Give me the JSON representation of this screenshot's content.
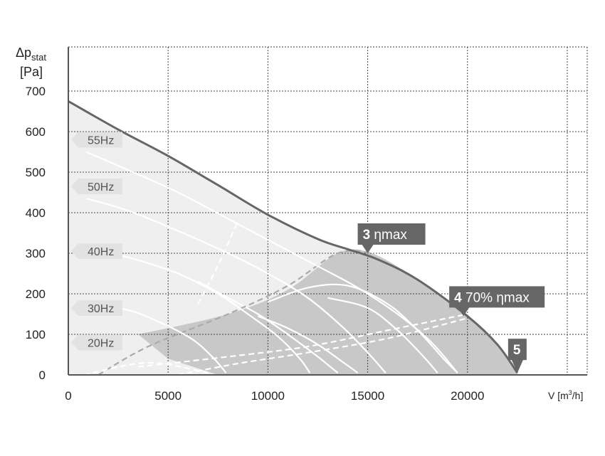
{
  "chart_data": {
    "type": "line",
    "ylabel_symbol": "Δp",
    "ylabel_sub": "stat",
    "ylabel_unit": "[Pa]",
    "xlabel_prefix": "V [m",
    "xlabel_sup": "3",
    "xlabel_suffix": "/h]",
    "xlim": [
      0,
      26000
    ],
    "ylim": [
      0,
      700
    ],
    "x_ticks": [
      0,
      5000,
      10000,
      15000,
      20000
    ],
    "y_ticks": [
      0,
      100,
      200,
      300,
      400,
      500,
      600,
      700
    ],
    "grid": true,
    "series": [
      {
        "name": "55Hz",
        "style": "max",
        "points": [
          [
            0,
            675
          ],
          [
            2500,
            605
          ],
          [
            5000,
            540
          ],
          [
            7500,
            468
          ],
          [
            10000,
            395
          ],
          [
            12500,
            335
          ],
          [
            14000,
            310
          ],
          [
            15500,
            285
          ],
          [
            17500,
            235
          ],
          [
            20000,
            145
          ],
          [
            21500,
            75
          ],
          [
            22500,
            5
          ]
        ]
      },
      {
        "name": "50Hz",
        "style": "curve",
        "points": [
          [
            900,
            550
          ],
          [
            3000,
            505
          ],
          [
            5500,
            450
          ],
          [
            8000,
            385
          ],
          [
            10500,
            320
          ],
          [
            12500,
            268
          ],
          [
            14500,
            215
          ],
          [
            16500,
            150
          ],
          [
            18200,
            80
          ],
          [
            19500,
            5
          ]
        ]
      },
      {
        "name": "40Hz",
        "style": "curve",
        "points": [
          [
            900,
            435
          ],
          [
            3000,
            405
          ],
          [
            5500,
            355
          ],
          [
            8000,
            300
          ],
          [
            10000,
            250
          ],
          [
            12000,
            190
          ],
          [
            13700,
            120
          ],
          [
            15000,
            55
          ],
          [
            15900,
            5
          ]
        ]
      },
      {
        "name": "30Hz",
        "style": "curve",
        "points": [
          [
            900,
            315
          ],
          [
            3000,
            290
          ],
          [
            5500,
            250
          ],
          [
            7500,
            200
          ],
          [
            9000,
            150
          ],
          [
            10500,
            95
          ],
          [
            11600,
            40
          ],
          [
            12100,
            5
          ]
        ]
      },
      {
        "name": "20Hz",
        "style": "curve",
        "points": [
          [
            900,
            175
          ],
          [
            3000,
            160
          ],
          [
            4800,
            125
          ],
          [
            6300,
            85
          ],
          [
            7300,
            40
          ],
          [
            7900,
            5
          ]
        ]
      }
    ],
    "inner_curves": [
      [
        [
          6500,
          230
        ],
        [
          8000,
          190
        ],
        [
          9500,
          150
        ],
        [
          11000,
          100
        ],
        [
          12500,
          45
        ],
        [
          13500,
          5
        ]
      ],
      [
        [
          9500,
          145
        ],
        [
          11000,
          115
        ],
        [
          12500,
          75
        ],
        [
          13800,
          30
        ],
        [
          14500,
          5
        ]
      ],
      [
        [
          10000,
          180
        ],
        [
          12000,
          215
        ],
        [
          14000,
          220
        ],
        [
          16000,
          175
        ],
        [
          17500,
          110
        ],
        [
          18800,
          40
        ],
        [
          19500,
          5
        ]
      ],
      [
        [
          13000,
          190
        ],
        [
          15000,
          165
        ],
        [
          16500,
          110
        ],
        [
          17800,
          45
        ],
        [
          18500,
          5
        ]
      ]
    ],
    "dashed_curves": [
      [
        [
          1500,
          0
        ],
        [
          4000,
          70
        ],
        [
          8000,
          150
        ],
        [
          11000,
          220
        ],
        [
          13500,
          300
        ],
        [
          15300,
          300
        ]
      ],
      [
        [
          800,
          0
        ],
        [
          4000,
          30
        ],
        [
          7000,
          5
        ]
      ],
      [
        [
          3500,
          20
        ],
        [
          8000,
          45
        ],
        [
          12000,
          70
        ],
        [
          16000,
          110
        ],
        [
          20000,
          150
        ]
      ],
      [
        [
          5500,
          0
        ],
        [
          8500,
          28
        ],
        [
          12000,
          55
        ],
        [
          16000,
          90
        ],
        [
          20000,
          140
        ]
      ],
      [
        [
          6500,
          175
        ],
        [
          7500,
          270
        ],
        [
          8500,
          380
        ]
      ]
    ],
    "operating_region_upper": [
      [
        3500,
        100
      ],
      [
        8000,
        150
      ],
      [
        11000,
        210
      ],
      [
        13500,
        300
      ],
      [
        15200,
        300
      ],
      [
        17500,
        235
      ],
      [
        20000,
        145
      ],
      [
        21500,
        75
      ],
      [
        22500,
        5
      ],
      [
        22500,
        0
      ]
    ],
    "operating_region_lower": [
      [
        22500,
        0
      ],
      [
        7500,
        0
      ],
      [
        5000,
        40
      ],
      [
        3500,
        100
      ]
    ],
    "markers": [
      {
        "id": "3",
        "label": "ηmax",
        "x": 15000,
        "y": 300
      },
      {
        "id": "4",
        "label": "70% ηmax",
        "x": 19800,
        "y": 145
      },
      {
        "id": "5",
        "label": "",
        "x": 22500,
        "y": 5
      }
    ],
    "hz_labels": [
      {
        "text": "55Hz",
        "y": 580
      },
      {
        "text": "50Hz",
        "y": 465
      },
      {
        "text": "40Hz",
        "y": 305
      },
      {
        "text": "30Hz",
        "y": 165
      },
      {
        "text": "20Hz",
        "y": 80
      }
    ]
  }
}
